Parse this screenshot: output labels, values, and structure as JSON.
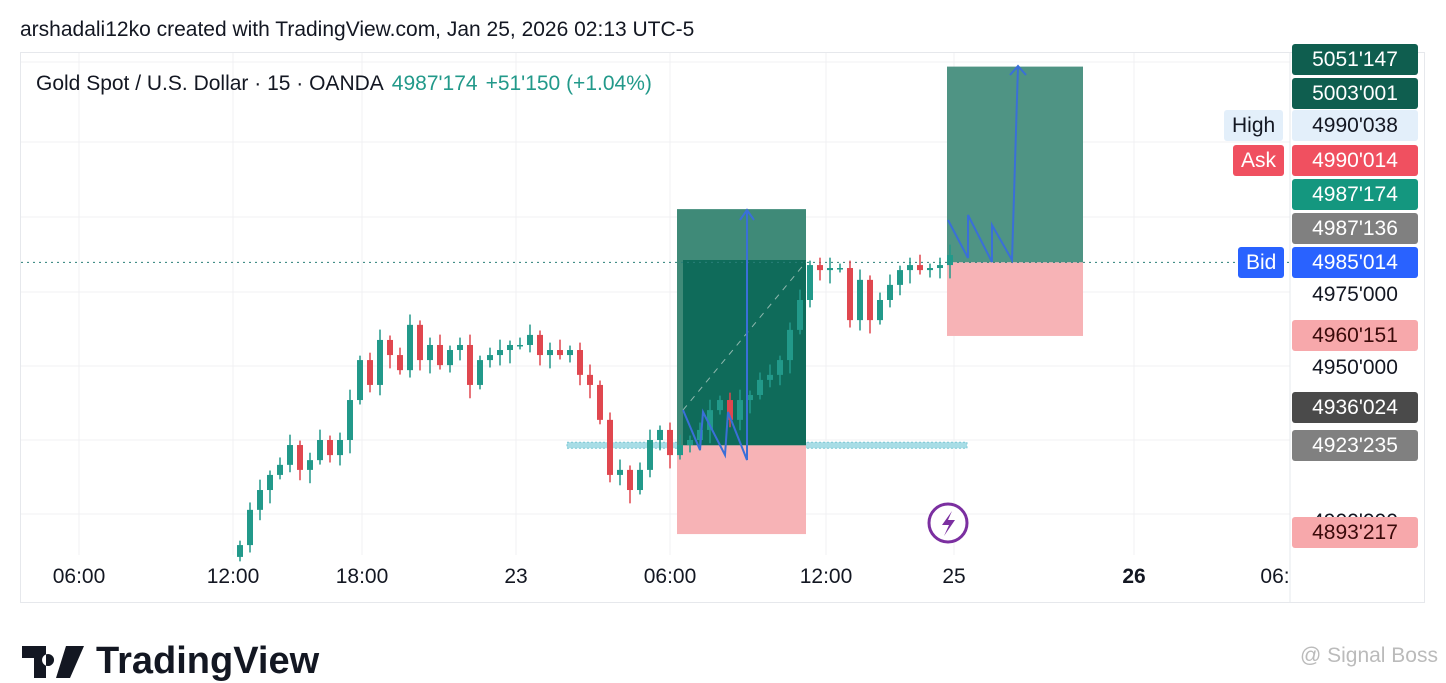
{
  "header": {
    "credit": "arshadali12ko created with TradingView.com, Jan 25, 2026 02:13 UTC-5"
  },
  "legend": {
    "symbol": "Gold Spot / U.S. Dollar · 15 · OANDA",
    "last": "4987'174",
    "change": "+51'150 (+1.04%)"
  },
  "colors": {
    "up": "#22998a",
    "down": "#e0474f",
    "bid": "#2962ff",
    "ask": "#f05060",
    "profit": "#0f6b5a",
    "loss": "#f7b3b6",
    "drawing": "#3a6fd8"
  },
  "price_labels": [
    {
      "text": "5051'147",
      "bg": "#0f5e4f",
      "fg": "#fff"
    },
    {
      "text": "5003'001",
      "bg": "#0f5e4f",
      "fg": "#fff"
    },
    {
      "text": "4990'038",
      "bg": "#e3effa",
      "fg": "#131722"
    },
    {
      "text": "4990'014",
      "bg": "#f05060",
      "fg": "#fff"
    },
    {
      "text": "4987'174",
      "bg": "#14977f",
      "fg": "#fff"
    },
    {
      "text": "4987'136",
      "bg": "#808080",
      "fg": "#fff"
    },
    {
      "text": "4985'014",
      "bg": "#2962ff",
      "fg": "#fff"
    },
    {
      "text": "4975'000",
      "bg": "transparent",
      "fg": "#131722"
    },
    {
      "text": "4960'151",
      "bg": "#f7a8ab",
      "fg": "#3a0a0a"
    },
    {
      "text": "4950'000",
      "bg": "transparent",
      "fg": "#131722"
    },
    {
      "text": "4936'024",
      "bg": "#4a4a4a",
      "fg": "#fff"
    },
    {
      "text": "4923'235",
      "bg": "#808080",
      "fg": "#fff"
    },
    {
      "text": "4900'000",
      "bg": "transparent",
      "fg": "#131722"
    },
    {
      "text": "4893'217",
      "bg": "#f7a8ab",
      "fg": "#3a0a0a"
    }
  ],
  "tags": {
    "high": "High",
    "ask": "Ask",
    "bid": "Bid"
  },
  "time_labels": [
    "06:00",
    "12:00",
    "18:00",
    "23",
    "06:00",
    "12:00",
    "25",
    "26",
    "06:"
  ],
  "footer": {
    "brand": "TradingView",
    "watermark": "@ Signal Boss"
  },
  "chart_data": {
    "type": "candlestick",
    "title": "Gold Spot / U.S. Dollar · 15 · OANDA",
    "ylim": [
      4885,
      5055
    ],
    "yticks": [
      4900,
      4950,
      4975
    ],
    "closes": [
      4889.5,
      4901.4,
      4908.1,
      4913.2,
      4916.6,
      4923.3,
      4914.9,
      4918.2,
      4925,
      4919.9,
      4925,
      4938.5,
      4952,
      4943.6,
      4958.8,
      4953.7,
      4948.6,
      4963.9,
      4952,
      4957.1,
      4950.3,
      4955.4,
      4957.1,
      4943.6,
      4952,
      4953.7,
      4955.4,
      4957.1,
      4957.1,
      4960.5,
      4953.7,
      4955.4,
      4953.7,
      4955.4,
      4947,
      4943.6,
      4931.8,
      4913.2,
      4914.9,
      4908.1,
      4914.9,
      4925,
      4928.4,
      4919.9,
      4923.3,
      4925,
      4928.4,
      4935.1,
      4938.5,
      4931.8,
      4938.5,
      4940.2,
      4945.3,
      4947,
      4952,
      4962.2,
      4972.3,
      4984.1,
      4982.4,
      4983.1,
      4983.1,
      4965.5,
      4979.1,
      4965.5,
      4972.3,
      4977.4,
      4982.4,
      4984.1,
      4982.4,
      4983.1,
      4984.1,
      4987.5
    ],
    "bid": 4985.014,
    "positions": [
      {
        "type": "long",
        "entry": 4923.235,
        "target": 5003.001,
        "stop": 4893.217
      },
      {
        "type": "long",
        "entry": 4985.014,
        "target": 5051.147,
        "stop": 4960.151
      }
    ],
    "support_zone": 4923.235
  }
}
